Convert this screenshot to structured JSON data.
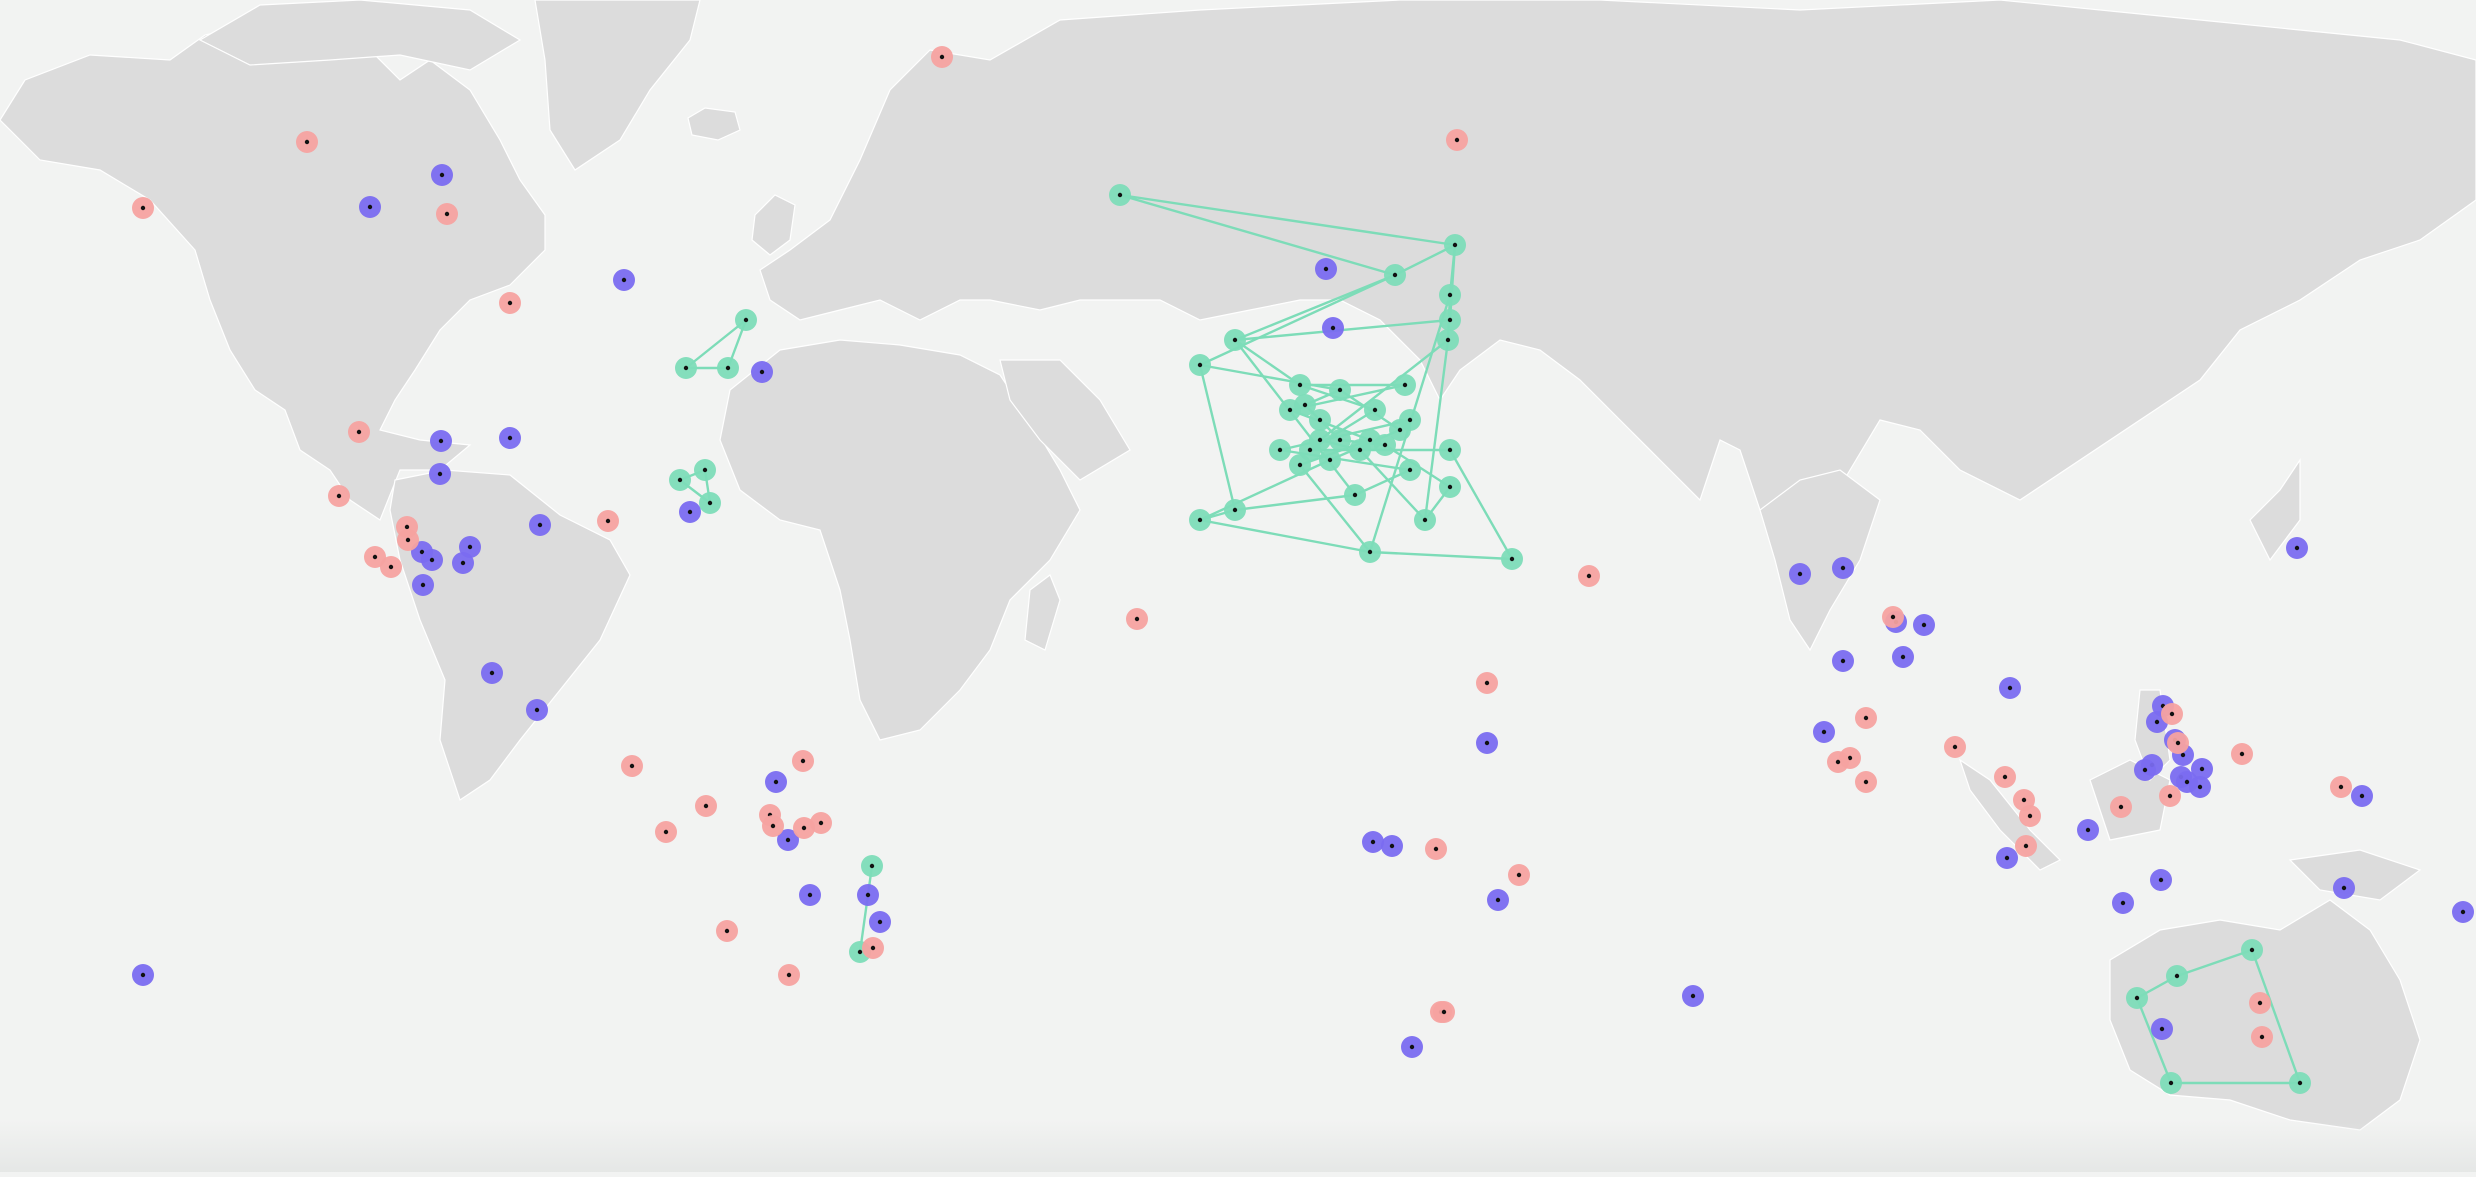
{
  "map": {
    "colors": {
      "ocean": "#f2f3f2",
      "land": "#dcdcdc",
      "border": "#ffffff",
      "marker_green": "#7ddcb8",
      "marker_purple": "#7a6cf0",
      "marker_pink": "#f6a2a0",
      "marker_center": "#111111",
      "route_line": "#7ddcb8"
    },
    "marker_categories": [
      "green",
      "purple",
      "pink"
    ],
    "route_category": "green"
  }
}
